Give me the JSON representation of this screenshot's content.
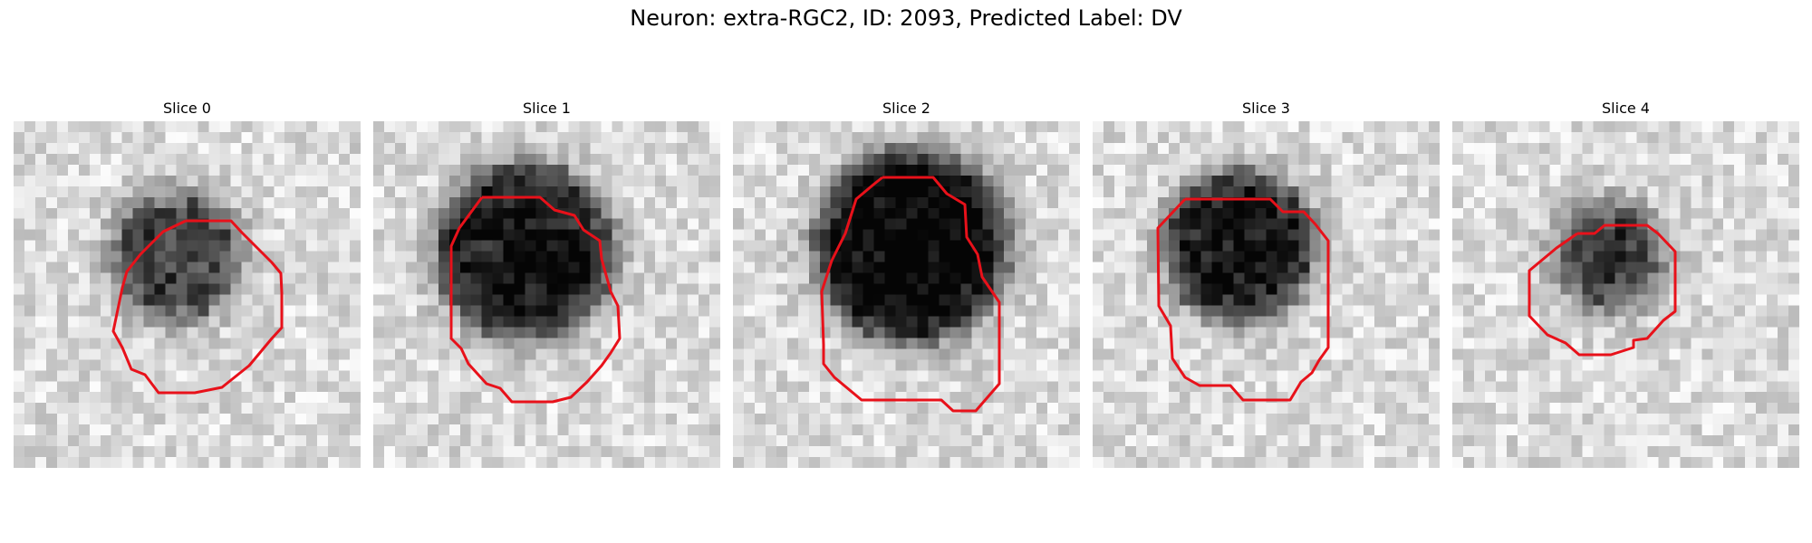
{
  "figure": {
    "title": "Neuron: extra-RGC2, ID: 2093, Predicted Label: DV"
  },
  "slices": [
    {
      "label": "Slice 0"
    },
    {
      "label": "Slice 1"
    },
    {
      "label": "Slice 2"
    },
    {
      "label": "Slice 3"
    },
    {
      "label": "Slice 4"
    }
  ],
  "colors": {
    "contour": "#e8111a",
    "background": "#ffffff"
  }
}
